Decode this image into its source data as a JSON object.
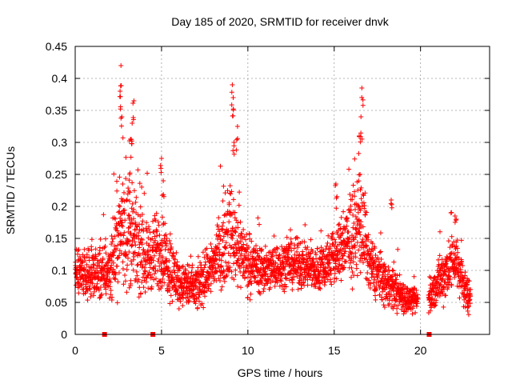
{
  "chart_data": {
    "type": "scatter",
    "title": "Day 185 of 2020, SRMTID for receiver dnvk",
    "xlabel": "GPS time / hours",
    "ylabel": "SRMTID / TECUs",
    "xlim": [
      0,
      24
    ],
    "ylim": [
      0,
      0.45
    ],
    "xticks": [
      0,
      5,
      10,
      15,
      20
    ],
    "yticks": [
      0,
      0.05,
      0.1,
      0.15,
      0.2,
      0.25,
      0.3,
      0.35,
      0.4,
      0.45
    ],
    "grid": true,
    "marker": "+",
    "color": "#ff0000",
    "gap_markers_x": [
      1.7,
      4.5,
      20.5
    ],
    "series_hourly_profile": [
      {
        "hour": 0.0,
        "base": 0.1,
        "spread": 0.04
      },
      {
        "hour": 1.0,
        "base": 0.09,
        "spread": 0.04
      },
      {
        "hour": 2.0,
        "base": 0.1,
        "spread": 0.05
      },
      {
        "hour": 2.7,
        "base": 0.17,
        "spread": 0.1
      },
      {
        "hour": 3.5,
        "base": 0.14,
        "spread": 0.08
      },
      {
        "hour": 4.0,
        "base": 0.12,
        "spread": 0.06
      },
      {
        "hour": 5.0,
        "base": 0.13,
        "spread": 0.07
      },
      {
        "hour": 6.0,
        "base": 0.08,
        "spread": 0.04
      },
      {
        "hour": 7.0,
        "base": 0.07,
        "spread": 0.04
      },
      {
        "hour": 8.0,
        "base": 0.11,
        "spread": 0.05
      },
      {
        "hour": 9.0,
        "base": 0.16,
        "spread": 0.08
      },
      {
        "hour": 10.0,
        "base": 0.11,
        "spread": 0.05
      },
      {
        "hour": 11.0,
        "base": 0.1,
        "spread": 0.04
      },
      {
        "hour": 12.0,
        "base": 0.11,
        "spread": 0.04
      },
      {
        "hour": 13.0,
        "base": 0.11,
        "spread": 0.04
      },
      {
        "hour": 14.0,
        "base": 0.1,
        "spread": 0.04
      },
      {
        "hour": 15.0,
        "base": 0.12,
        "spread": 0.05
      },
      {
        "hour": 16.0,
        "base": 0.15,
        "spread": 0.07
      },
      {
        "hour": 16.6,
        "base": 0.17,
        "spread": 0.09
      },
      {
        "hour": 17.0,
        "base": 0.11,
        "spread": 0.05
      },
      {
        "hour": 18.0,
        "base": 0.08,
        "spread": 0.04
      },
      {
        "hour": 19.0,
        "base": 0.06,
        "spread": 0.03
      },
      {
        "hour": 19.5,
        "base": 0.05,
        "spread": 0.02
      },
      {
        "hour": 20.6,
        "base": 0.06,
        "spread": 0.03
      },
      {
        "hour": 21.5,
        "base": 0.1,
        "spread": 0.05
      },
      {
        "hour": 22.0,
        "base": 0.12,
        "spread": 0.05
      },
      {
        "hour": 22.7,
        "base": 0.06,
        "spread": 0.03
      }
    ],
    "peaks": [
      {
        "hour": 2.65,
        "value": 0.42
      },
      {
        "hour": 2.6,
        "value": 0.38
      },
      {
        "hour": 2.7,
        "value": 0.34
      },
      {
        "hour": 3.4,
        "value": 0.365
      },
      {
        "hour": 3.3,
        "value": 0.33
      },
      {
        "hour": 3.2,
        "value": 0.305
      },
      {
        "hour": 3.15,
        "value": 0.25
      },
      {
        "hour": 5.0,
        "value": 0.275
      },
      {
        "hour": 5.1,
        "value": 0.24
      },
      {
        "hour": 9.1,
        "value": 0.39
      },
      {
        "hour": 9.15,
        "value": 0.37
      },
      {
        "hour": 9.4,
        "value": 0.325
      },
      {
        "hour": 9.2,
        "value": 0.3
      },
      {
        "hour": 16.6,
        "value": 0.385
      },
      {
        "hour": 16.55,
        "value": 0.34
      },
      {
        "hour": 16.45,
        "value": 0.31
      },
      {
        "hour": 16.5,
        "value": 0.25
      },
      {
        "hour": 15.1,
        "value": 0.235
      },
      {
        "hour": 18.3,
        "value": 0.21
      },
      {
        "hour": 22.0,
        "value": 0.185
      }
    ],
    "data_gap_hours": [
      [
        19.85,
        20.45
      ],
      [
        22.9,
        24
      ]
    ]
  }
}
